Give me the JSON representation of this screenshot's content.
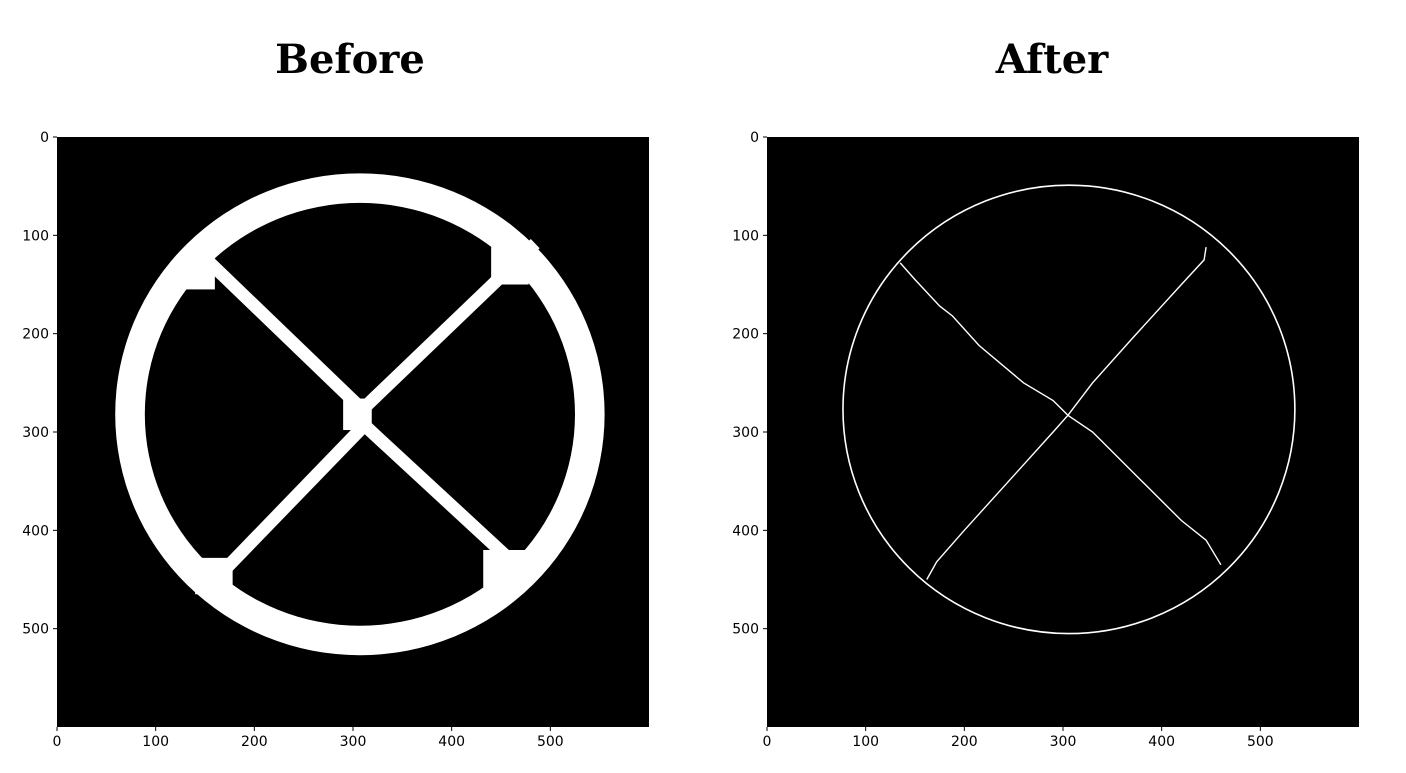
{
  "chart_data": [
    {
      "type": "image",
      "title": "Before",
      "xlim": [
        0,
        600
      ],
      "ylim": [
        600,
        0
      ],
      "x_ticks": [
        0,
        100,
        200,
        300,
        400,
        500
      ],
      "y_ticks": [
        0,
        100,
        200,
        300,
        400,
        500
      ],
      "x_tick_labels": [
        "0",
        "100",
        "200",
        "300",
        "400",
        "500"
      ],
      "y_tick_labels": [
        "0",
        "100",
        "200",
        "300",
        "400",
        "500"
      ],
      "content": "thick white ring with X-shaped spokes on black background",
      "ring": {
        "center": [
          307,
          282
        ],
        "outer_radius_x": 248,
        "outer_radius_y": 245,
        "inner_radius_x": 218,
        "inner_radius_y": 215
      },
      "center_square": {
        "x": [
          290,
          319
        ],
        "y": [
          266,
          298
        ]
      },
      "spoke_width": 13,
      "colors": {
        "background": "#000000",
        "foreground": "#ffffff"
      }
    },
    {
      "type": "image",
      "title": "After",
      "xlim": [
        0,
        600
      ],
      "ylim": [
        600,
        0
      ],
      "x_ticks": [
        0,
        100,
        200,
        300,
        400,
        500
      ],
      "y_ticks": [
        0,
        100,
        200,
        300,
        400,
        500
      ],
      "x_tick_labels": [
        "0",
        "100",
        "200",
        "300",
        "400",
        "500"
      ],
      "y_tick_labels": [
        "0",
        "100",
        "200",
        "300",
        "400",
        "500"
      ],
      "content": "thin white skeleton outline of ring and X spokes on black background",
      "ring": {
        "center": [
          306,
          277
        ],
        "radius_x": 229,
        "radius_y": 228
      },
      "center_point": [
        305,
        283
      ],
      "colors": {
        "background": "#000000",
        "foreground": "#ffffff"
      }
    }
  ]
}
